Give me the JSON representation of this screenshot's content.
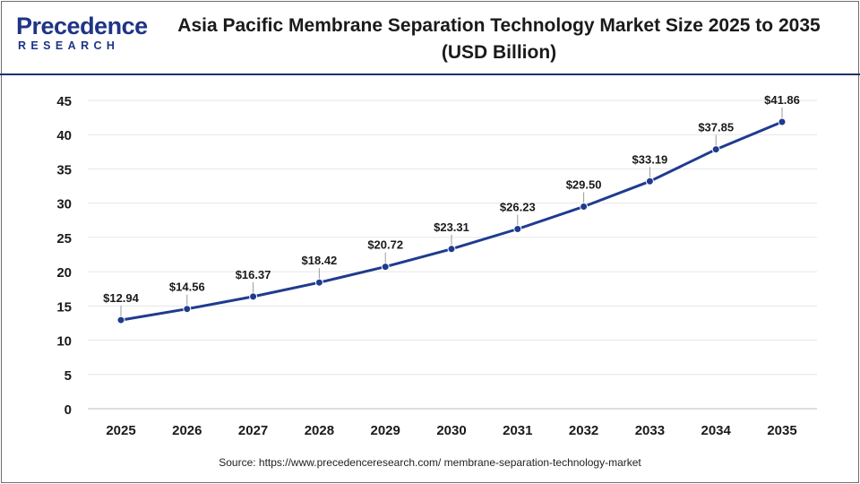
{
  "brand": {
    "logo_main": "Precedence",
    "logo_sub": "RESEARCH"
  },
  "header": {
    "title_line1": "Asia Pacific Membrane Separation Technology Market Size 2025 to 2035",
    "title_line2": "(USD Billion)"
  },
  "chart_data": {
    "type": "line",
    "title": "Asia Pacific Membrane Separation Technology Market Size 2025 to 2035 (USD Billion)",
    "xlabel": "",
    "ylabel": "",
    "categories": [
      "2025",
      "2026",
      "2027",
      "2028",
      "2029",
      "2030",
      "2031",
      "2032",
      "2033",
      "2034",
      "2035"
    ],
    "values": [
      12.94,
      14.56,
      16.37,
      18.42,
      20.72,
      23.31,
      26.23,
      29.5,
      33.19,
      37.85,
      41.86
    ],
    "data_labels": [
      "$12.94",
      "$14.56",
      "$16.37",
      "$18.42",
      "$20.72",
      "$23.31",
      "$26.23",
      "$29.50",
      "$33.19",
      "$37.85",
      "$41.86"
    ],
    "ylim": [
      0,
      45
    ],
    "yticks": [
      0,
      5,
      10,
      15,
      20,
      25,
      30,
      35,
      40,
      45
    ],
    "grid": true,
    "legend": "none",
    "colors": {
      "line": "#1f3b8f",
      "marker": "#1f3b8f",
      "grid": "#e6e6e6",
      "axis": "#bdbdbd"
    }
  },
  "footer": {
    "source": "Source: https://www.precedenceresearch.com/ membrane-separation-technology-market"
  }
}
